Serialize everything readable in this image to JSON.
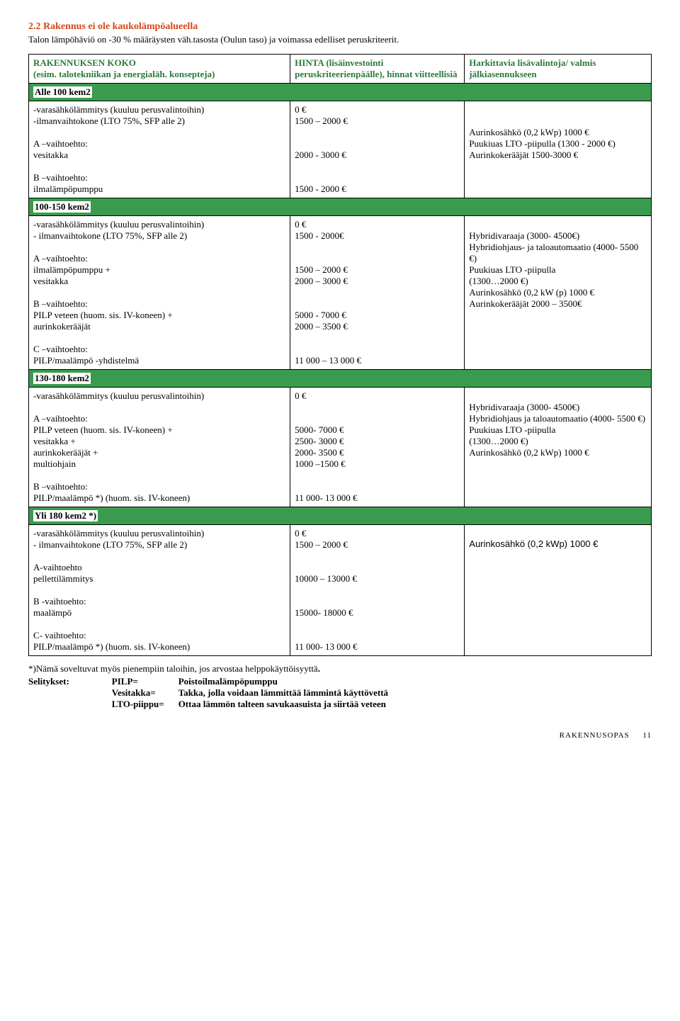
{
  "section": {
    "number": "2.2",
    "title": "Rakennus ei ole kaukolämpöalueella",
    "subtitle": "Talon lämpöhäviö on -30 % määräysten väh.tasosta (Oulun taso) ja voimassa edelliset peruskriteerit."
  },
  "headers": {
    "col1": "RAKENNUKSEN KOKO\n(esim. talotekniikan ja energialäh. konsepteja)",
    "col2": "HINTA (lisäinvestointi peruskriteerienpäälle), hinnat viitteellisiä",
    "col3": "Harkittavia lisävalintoja/ valmis jälkiasennukseen"
  },
  "groups": [
    {
      "banner": "Alle 100 kem2",
      "rows": [
        {
          "c1": "-varasähkölämmitys (kuuluu perusvalintoihin)\n-ilmanvaihtokone (LTO 75%, SFP alle 2)\n\nA –vaihtoehto:\n  vesitakka\n\nB –vaihtoehto:\n  ilmalämpöpumppu",
          "c2": "0 €\n1500 – 2000 €\n\n\n2000 - 3000 €\n\n\n1500 - 2000 €",
          "c3": "\n\nAurinkosähkö (0,2 kWp) 1000 €\nPuukiuas LTO -piipulla (1300 - 2000 €)\nAurinkokerääjät  1500-3000 €"
        }
      ]
    },
    {
      "banner": "100-150 kem2",
      "rows": [
        {
          "c1": "-varasähkölämmitys (kuuluu perusvalintoihin)\n- ilmanvaihtokone (LTO 75%, SFP alle 2)\n\n A –vaihtoehto:\nilmalämpöpumppu +\nvesitakka\n\nB –vaihtoehto:\nPILP veteen (huom. sis. IV-koneen) +\naurinkokerääjät\n\nC –vaihtoehto:\nPILP/maalämpö -yhdistelmä",
          "c2": "0 €\n1500 - 2000€\n\n\n1500 – 2000 €\n2000 – 3000 €\n\n\n5000  - 7000 €\n2000 – 3500 €\n\n\n11 000 – 13 000 €",
          "c3": "\nHybridivaraaja (3000- 4500€)\nHybridiohjaus- ja taloautomaatio (4000- 5500 €)\nPuukiuas LTO -piipulla\n(1300…2000 €)\nAurinkosähkö (0,2 kW (p) 1000 €\nAurinkokerääjät 2000 – 3500€"
        }
      ]
    },
    {
      "banner": "130-180 kem2",
      "rows": [
        {
          "c1": "-varasähkölämmitys (kuuluu perusvalintoihin)\n\nA –vaihtoehto:\nPILP veteen (huom. sis. IV-koneen) +\nvesitakka +\naurinkokerääjät +\nmultiohjain\n\nB –vaihtoehto:\nPILP/maalämpö *) (huom. sis. IV-koneen)",
          "c2": "0 €\n\n\n5000- 7000 €\n2500- 3000 €\n2000- 3500 €\n1000 –1500 €\n\n\n11 000- 13 000 €",
          "c3": "\nHybridivaraaja (3000- 4500€)\nHybridiohjaus ja taloautomaatio (4000- 5500 €)\nPuukiuas LTO -piipulla\n(1300…2000 €)\nAurinkosähkö (0,2 kWp) 1000 €"
        }
      ]
    },
    {
      "banner": "Yli 180 kem2 *)",
      "rows": [
        {
          "c1": "-varasähkölämmitys (kuuluu perusvalintoihin)\n- ilmanvaihtokone (LTO 75%, SFP alle 2)\n\nA-vaihtoehto\npellettilämmitys\n\nB -vaihtoehto:\nmaalämpö\n\nC- vaihtoehto:\nPILP/maalämpö *) (huom. sis. IV-koneen)",
          "c2": "0 €\n1500 – 2000 €\n\n\n10000 – 13000 €\n\n\n15000- 18000 €\n\n\n11 000- 13 000 €",
          "c3": "\nAurinkosähkö (0,2 kWp) 1000 €",
          "c3_font": "sans"
        }
      ]
    }
  ],
  "footnote": {
    "line1_pre": "*)Nämä soveltuvat myös pienempiin taloihin, jos arvostaa helppokäyttöisyyttä",
    "line1_bold": ".",
    "defs_label": "Selitykset:",
    "defs": [
      {
        "k": "PILP=",
        "v": "Poistoilmalämpöpumppu"
      },
      {
        "k": "Vesitakka=",
        "v": "Takka, jolla voidaan lämmittää lämmintä käyttövettä"
      },
      {
        "k": "LTO-piippu=",
        "v": "Ottaa lämmön talteen savukaasuista ja siirtää veteen"
      }
    ]
  },
  "footer": {
    "label": "RAKENNUSOPAS",
    "page": "11"
  },
  "colors": {
    "orange": "#d4491a",
    "green_header": "#2a7a3a",
    "green_banner": "#3a9b4e"
  }
}
